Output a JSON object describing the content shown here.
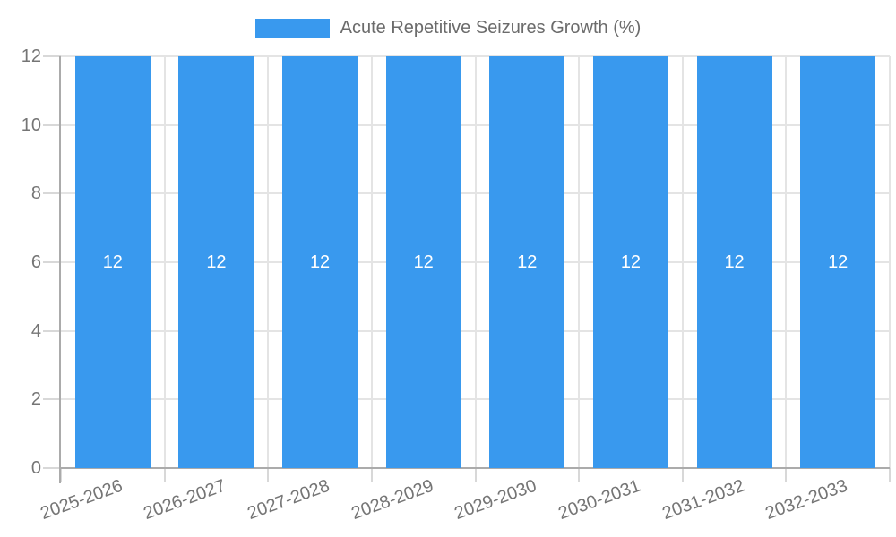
{
  "chart_data": {
    "type": "bar",
    "title": "",
    "legend_label": "Acute Repetitive Seizures Growth (%)",
    "legend_position": "top",
    "categories": [
      "2025-2026",
      "2026-2027",
      "2027-2028",
      "2028-2029",
      "2029-2030",
      "2030-2031",
      "2031-2032",
      "2032-2033"
    ],
    "values": [
      12,
      12,
      12,
      12,
      12,
      12,
      12,
      12
    ],
    "value_labels": [
      "12",
      "12",
      "12",
      "12",
      "12",
      "12",
      "12",
      "12"
    ],
    "xlabel": "",
    "ylabel": "",
    "ylim": [
      0,
      12
    ],
    "yticks": [
      0,
      2,
      4,
      6,
      8,
      10,
      12
    ],
    "grid": true,
    "x_label_rotation_deg": -20,
    "colors": {
      "bar": "#3999EE",
      "grid": "#E4E4E4",
      "axis_line": "#ABABAB",
      "tick": "#D8D8D8",
      "axis_text": "#757575",
      "legend_text": "#6B6B6B",
      "value_label_text": "#FFFFFF",
      "background": "#FFFFFF"
    }
  }
}
